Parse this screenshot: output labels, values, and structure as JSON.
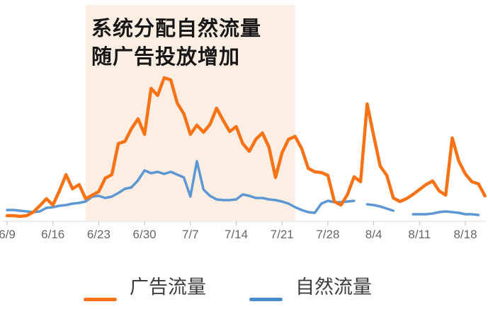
{
  "page": {
    "background": "#ffffff"
  },
  "legend": {
    "items": [
      {
        "id": "ad-traffic",
        "label": "广告流量",
        "color": "#f97316"
      },
      {
        "id": "organic-traffic",
        "label": "自然流量",
        "color": "#4a8cd0"
      }
    ],
    "label_color": "#3d3d3d"
  },
  "chart_data": {
    "type": "line",
    "title": "",
    "y_axis_visible": false,
    "ylim": [
      0,
      210
    ],
    "y_units": "relative traffic (no y-axis shown)",
    "annotation": {
      "line1": "系统分配自然流量",
      "line2": "随广告投放增加",
      "text_color": "#171717"
    },
    "highlight_region": {
      "start_date": "6/21",
      "end_date": "7/23",
      "fill": "#fceee3"
    },
    "axis_color": "#d9d9d9",
    "tick_color": "#bfbfbf",
    "tick_label_color": "#666666",
    "x_tick_labels": [
      "6/9",
      "6/16",
      "6/23",
      "6/30",
      "7/7",
      "7/14",
      "7/21",
      "7/28",
      "8/4",
      "8/11",
      "8/18"
    ],
    "dates": [
      "6/9",
      "6/10",
      "6/11",
      "6/12",
      "6/13",
      "6/14",
      "6/15",
      "6/16",
      "6/17",
      "6/18",
      "6/19",
      "6/20",
      "6/21",
      "6/22",
      "6/23",
      "6/24",
      "6/25",
      "6/26",
      "6/27",
      "6/28",
      "6/29",
      "6/30",
      "7/1",
      "7/2",
      "7/3",
      "7/4",
      "7/5",
      "7/6",
      "7/7",
      "7/8",
      "7/9",
      "7/10",
      "7/11",
      "7/12",
      "7/13",
      "7/14",
      "7/15",
      "7/16",
      "7/17",
      "7/18",
      "7/19",
      "7/20",
      "7/21",
      "7/22",
      "7/23",
      "7/24",
      "7/25",
      "7/26",
      "7/27",
      "7/28",
      "7/29",
      "7/30",
      "7/31",
      "8/1",
      "8/2",
      "8/3",
      "8/4",
      "8/5",
      "8/6",
      "8/7",
      "8/8",
      "8/9",
      "8/10",
      "8/11",
      "8/12",
      "8/13",
      "8/14",
      "8/15",
      "8/16",
      "8/17",
      "8/18",
      "8/19",
      "8/20",
      "8/21"
    ],
    "series": [
      {
        "id": "ad-traffic",
        "name": "广告流量",
        "color": "#f97316",
        "stroke_width": 4.5,
        "values": [
          8,
          8,
          7,
          8,
          13,
          22,
          32,
          23,
          43,
          66,
          46,
          52,
          32,
          37,
          42,
          61,
          66,
          110,
          113,
          131,
          145,
          123,
          188,
          178,
          203,
          200,
          167,
          152,
          123,
          136,
          126,
          137,
          160,
          143,
          127,
          134,
          110,
          99,
          116,
          125,
          105,
          62,
          97,
          116,
          120,
          103,
          75,
          70,
          69,
          65,
          28,
          23,
          38,
          63,
          56,
          166,
          121,
          78,
          65,
          33,
          28,
          32,
          38,
          45,
          52,
          57,
          43,
          37,
          118,
          85,
          67,
          56,
          53,
          36
        ]
      },
      {
        "id": "organic-traffic",
        "name": "自然流量",
        "color": "#4a8cd0",
        "stroke_width": 3.5,
        "values": [
          16,
          16,
          15,
          14,
          13,
          14,
          19,
          20,
          22,
          23,
          25,
          26,
          28,
          35,
          36,
          33,
          35,
          40,
          46,
          48,
          58,
          72,
          68,
          70,
          67,
          70,
          66,
          62,
          35,
          85,
          45,
          36,
          31,
          30,
          30,
          31,
          38,
          36,
          33,
          33,
          31,
          30,
          28,
          25,
          20,
          16,
          13,
          12,
          25,
          29,
          27,
          27,
          28,
          29,
          null,
          24,
          23,
          21,
          18,
          15,
          null,
          null,
          10,
          10,
          10,
          11,
          13,
          14,
          13,
          12,
          10,
          10,
          9,
          null
        ]
      }
    ]
  }
}
